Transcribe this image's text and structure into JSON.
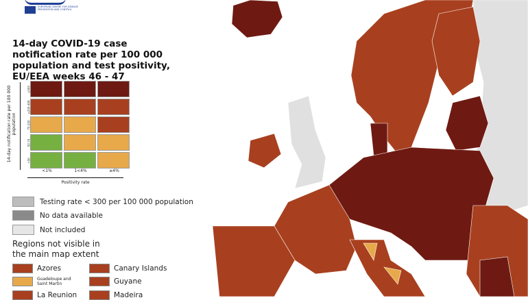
{
  "logo": {
    "text": "EUROPEAN CENTRE FOR DISEASE PREVENTION AND CONTROL"
  },
  "title": "14-day COVID-19 case notification rate per 100 000 population and test positivity, EU/EEA weeks 46 - 47",
  "matrix": {
    "y_axis_label": "14-day notification rate per 100 000 population",
    "x_axis_label": "Positivity rate",
    "rows": [
      "≥500",
      "≥200-499",
      "75-200",
      "50-74",
      "<50"
    ],
    "columns": [
      "<1%",
      "1<4%",
      "≥4%"
    ],
    "cells": [
      [
        "#6e1a12",
        "#6e1a12",
        "#6e1a12"
      ],
      [
        "#a8401f",
        "#a8401f",
        "#a8401f"
      ],
      [
        "#e8a94a",
        "#e8a94a",
        "#a8401f"
      ],
      [
        "#76b041",
        "#e8a94a",
        "#e8a94a"
      ],
      [
        "#76b041",
        "#76b041",
        "#e8a94a"
      ]
    ]
  },
  "legend": [
    {
      "label": "Testing rate < 300 per 100 000 population",
      "color": "#bdbdbd"
    },
    {
      "label": "No data available",
      "color": "#8a8a8a"
    },
    {
      "label": "Not included",
      "color": "#e6e6e6"
    }
  ],
  "regions_header": "Regions not visible in the main map extent",
  "regions": [
    {
      "label": "Azores",
      "color": "#a8401f"
    },
    {
      "label": "Canary Islands",
      "color": "#a8401f"
    },
    {
      "label": "Guadeloupe and Saint Martin",
      "color": "#e8a94a"
    },
    {
      "label": "Guyane",
      "color": "#a8401f"
    },
    {
      "label": "La Reunion",
      "color": "#a8401f"
    },
    {
      "label": "Madeira",
      "color": "#a8401f"
    }
  ],
  "colors": {
    "dark": "#6e1a12",
    "red": "#a8401f",
    "orange": "#e8a94a",
    "green": "#76b041",
    "excluded": "#e0e0e0"
  }
}
